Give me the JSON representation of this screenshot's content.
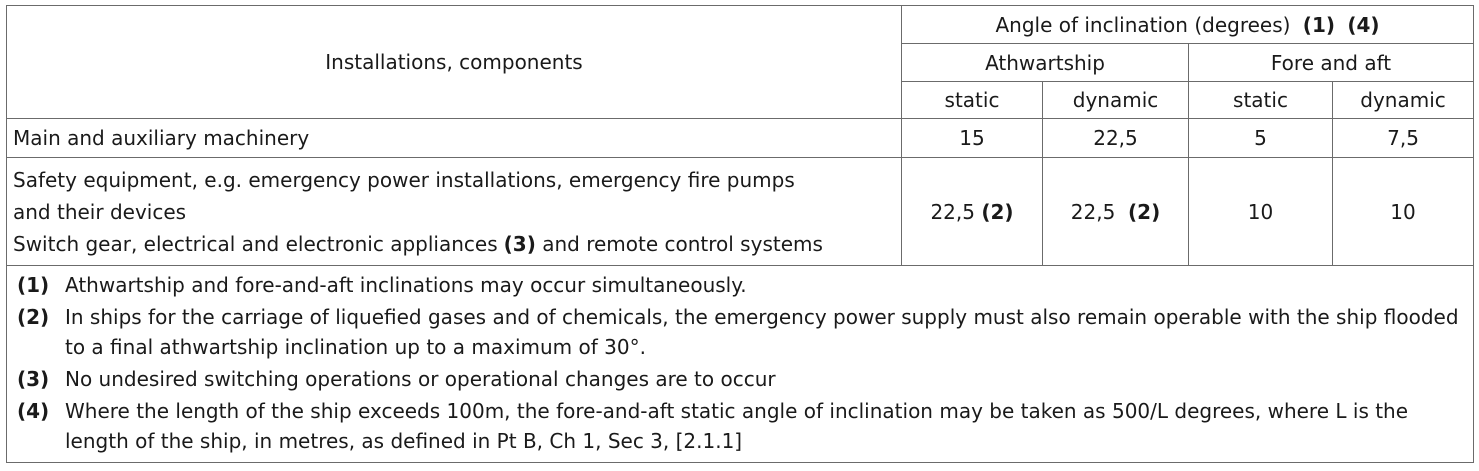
{
  "header": {
    "components_label": "Installations, components",
    "angle_title": "Angle of inclination (degrees)",
    "angle_refs": [
      "(1)",
      "(4)"
    ],
    "athwartship": "Athwartship",
    "fore_aft": "Fore and aft",
    "static": "static",
    "dynamic": "dynamic"
  },
  "rows": [
    {
      "label_lines": [
        "Main and auxiliary machinery"
      ],
      "ath_static": "15",
      "ath_dynamic": "22,5",
      "fa_static": "5",
      "fa_dynamic": "7,5"
    },
    {
      "label_lines": [
        "Safety equipment, e.g. emergency power installations, emergency fire pumps",
        "and their devices",
        "Switch gear, electrical and electronic appliances",
        "(3)",
        "and remote control systems"
      ],
      "ath_static": "22,5",
      "ath_static_ref": "(2)",
      "ath_dynamic": "22,5",
      "ath_dynamic_ref": "(2)",
      "fa_static": "10",
      "fa_dynamic": "10"
    }
  ],
  "footnotes": [
    {
      "num": "(1)",
      "text": "Athwartship and fore-and-aft inclinations may occur simultaneously."
    },
    {
      "num": "(2)",
      "text": "In ships for the carriage of liquefied gases and of chemicals, the emergency power supply must also remain operable with the ship flooded to a final athwartship inclination up to a maximum of 30°."
    },
    {
      "num": "(3)",
      "text": "No undesired switching operations or operational changes are to occur"
    },
    {
      "num": "(4)",
      "text": "Where the length of the ship exceeds 100m, the fore-and-aft static angle of inclination may be taken as 500/L degrees, where L is the length of the ship, in metres, as defined in Pt B, Ch 1, Sec 3, [2.1.1]"
    }
  ]
}
